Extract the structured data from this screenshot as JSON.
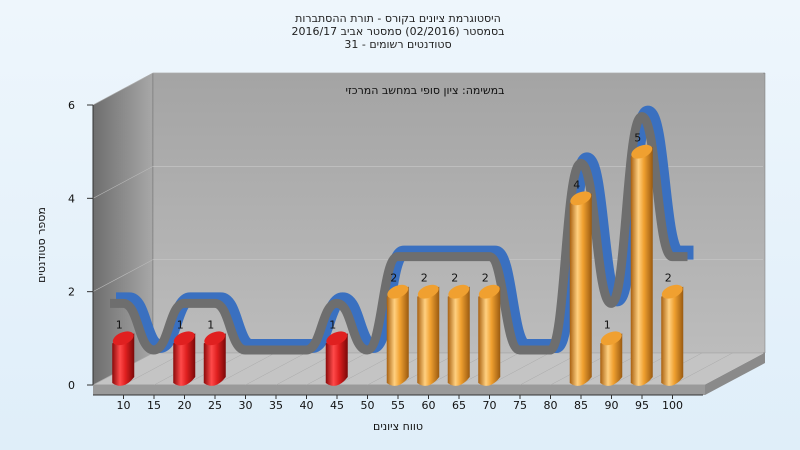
{
  "chart_data": {
    "type": "bar",
    "title_lines": [
      "היסטוגרמת ציונים בקורס - תורת ההסתברות",
      "בסמסטר  (02/2016)  סמסטר אביב 2016/17",
      "סטודנטים רשומים - 31"
    ],
    "subtitle": "במשימה: ציון סופי במחשב המרכזי",
    "xlabel": "טווח ציונים",
    "ylabel": "מספר סטודנטים",
    "ylim": [
      0,
      6
    ],
    "y_ticks": [
      "0",
      "2",
      "4",
      "6"
    ],
    "categories": [
      "10",
      "15",
      "20",
      "25",
      "30",
      "35",
      "40",
      "45",
      "50",
      "55",
      "60",
      "65",
      "70",
      "75",
      "80",
      "85",
      "90",
      "95",
      "100"
    ],
    "values": [
      1,
      0,
      1,
      1,
      0,
      0,
      0,
      1,
      0,
      2,
      2,
      2,
      2,
      0,
      0,
      4,
      1,
      5,
      2
    ],
    "bar_colors": {
      "low": "#e02020",
      "high": "#f0a030"
    },
    "trend_colors": [
      "#6e6e6e",
      "#3a70c0"
    ],
    "grid": true
  }
}
